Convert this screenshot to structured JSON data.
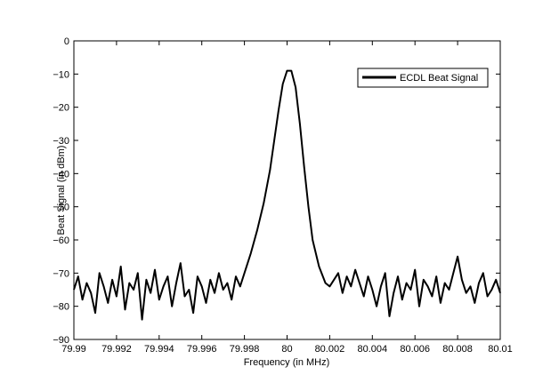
{
  "chart_data": {
    "type": "line",
    "title": "",
    "xlabel": "Frequency (in MHz)",
    "ylabel": "Beat Signal (in dBm)",
    "xlim": [
      79.99,
      80.01
    ],
    "ylim": [
      -90,
      0
    ],
    "x_ticks": [
      79.99,
      79.992,
      79.994,
      79.996,
      79.998,
      80,
      80.002,
      80.004,
      80.006,
      80.008,
      80.01
    ],
    "x_tick_labels": [
      "79.99",
      "79.992",
      "79.994",
      "79.996",
      "79.998",
      "80",
      "80.002",
      "80.004",
      "80.006",
      "80.008",
      "80.01"
    ],
    "y_ticks": [
      0,
      -10,
      -20,
      -30,
      -40,
      -50,
      -60,
      -70,
      -80,
      -90
    ],
    "y_tick_labels": [
      "0",
      "−10",
      "−20",
      "−30",
      "−40",
      "−50",
      "−60",
      "−70",
      "−80",
      "−90"
    ],
    "grid": false,
    "legend_position": "top-right",
    "series": [
      {
        "name": "ECDL Beat Signal",
        "color": "#000000",
        "x": [
          79.99,
          79.9902,
          79.9904,
          79.9906,
          79.9908,
          79.991,
          79.9912,
          79.9914,
          79.9916,
          79.9918,
          79.992,
          79.9922,
          79.9924,
          79.9926,
          79.9928,
          79.993,
          79.9932,
          79.9934,
          79.9936,
          79.9938,
          79.994,
          79.9942,
          79.9944,
          79.9946,
          79.9948,
          79.995,
          79.9952,
          79.9954,
          79.9956,
          79.9958,
          79.996,
          79.9962,
          79.9964,
          79.9966,
          79.9968,
          79.997,
          79.9972,
          79.9974,
          79.9976,
          79.9978,
          79.998,
          79.9983,
          79.9986,
          79.9989,
          79.9992,
          79.9994,
          79.9996,
          79.9998,
          80.0,
          80.0002,
          80.0004,
          80.0006,
          80.0008,
          80.001,
          80.0012,
          80.0015,
          80.0018,
          80.002,
          80.0022,
          80.0024,
          80.0026,
          80.0028,
          80.003,
          80.0032,
          80.0034,
          80.0036,
          80.0038,
          80.004,
          80.0042,
          80.0044,
          80.0046,
          80.0048,
          80.005,
          80.0052,
          80.0054,
          80.0056,
          80.0058,
          80.006,
          80.0062,
          80.0064,
          80.0066,
          80.0068,
          80.007,
          80.0072,
          80.0074,
          80.0076,
          80.0078,
          80.008,
          80.0082,
          80.0084,
          80.0086,
          80.0088,
          80.009,
          80.0092,
          80.0094,
          80.0096,
          80.0098,
          80.01
        ],
        "y": [
          -75,
          -71,
          -78,
          -73,
          -76,
          -82,
          -70,
          -74,
          -79,
          -72,
          -77,
          -68,
          -81,
          -73,
          -75,
          -70,
          -84,
          -72,
          -76,
          -69,
          -78,
          -74,
          -71,
          -80,
          -73,
          -67,
          -77,
          -75,
          -82,
          -71,
          -74,
          -79,
          -72,
          -76,
          -70,
          -75,
          -73,
          -78,
          -71,
          -74,
          -70,
          -64,
          -57,
          -49,
          -39,
          -30,
          -21,
          -13,
          -9,
          -9,
          -14,
          -25,
          -38,
          -50,
          -60,
          -68,
          -73,
          -74,
          -72,
          -70,
          -76,
          -71,
          -74,
          -69,
          -73,
          -77,
          -71,
          -75,
          -80,
          -74,
          -70,
          -83,
          -76,
          -71,
          -78,
          -73,
          -75,
          -69,
          -80,
          -72,
          -74,
          -77,
          -71,
          -79,
          -73,
          -75,
          -70,
          -65,
          -72,
          -76,
          -74,
          -79,
          -73,
          -70,
          -77,
          -75,
          -72,
          -76
        ]
      }
    ]
  }
}
